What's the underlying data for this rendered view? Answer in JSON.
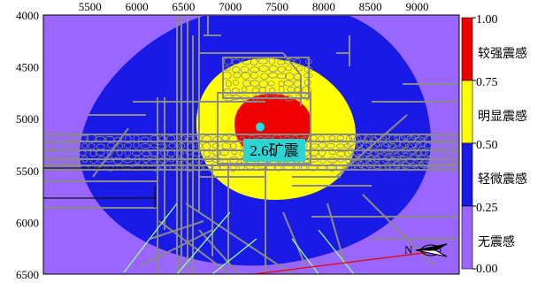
{
  "map": {
    "x_axis": {
      "range": [
        5000,
        9450
      ],
      "tick_values": [
        5500,
        6000,
        6500,
        7000,
        7500,
        8000,
        8500,
        9000
      ],
      "tick_labels": [
        "5500",
        "6000",
        "6500",
        "7000",
        "7500",
        "8000",
        "8500",
        "9000"
      ],
      "position": "top"
    },
    "y_axis": {
      "range": [
        4000,
        6500
      ],
      "inverted": true,
      "tick_values": [
        4000,
        4500,
        5000,
        5500,
        6000,
        6500
      ],
      "tick_labels": [
        "4000",
        "4500",
        "5000",
        "5500",
        "6000",
        "6500"
      ]
    },
    "zones": [
      {
        "id": "outer-background",
        "color": "#9966ff"
      },
      {
        "id": "light-zone",
        "color": "#1a1ae6",
        "center": [
          7250,
          5200
        ],
        "rx": 1700,
        "ry": 1050
      },
      {
        "id": "moderate-zone",
        "color": "#ffff00",
        "center": [
          7250,
          5130
        ],
        "rx": 860,
        "ry": 720
      },
      {
        "id": "strong-zone",
        "color": "#ee0000",
        "center": [
          7250,
          5050
        ],
        "rx": 420,
        "ry": 340
      }
    ],
    "epicenter": {
      "x": 7320,
      "y": 5080,
      "color": "#22dddd"
    },
    "event_label": "2.6矿震",
    "north_arrow": {
      "letter": "N"
    }
  },
  "legend": {
    "bins": [
      {
        "color": "#ee0000",
        "upper": "1.00",
        "label": "较强震感"
      },
      {
        "color": "#ffff00",
        "upper": "0.75",
        "label": "明显震感"
      },
      {
        "color": "#1a1ae6",
        "upper": "0.50",
        "label": "轻微震感"
      },
      {
        "color": "#9966ff",
        "upper": "0.25",
        "label": "无震感"
      }
    ],
    "bottom_value": "0.00"
  }
}
